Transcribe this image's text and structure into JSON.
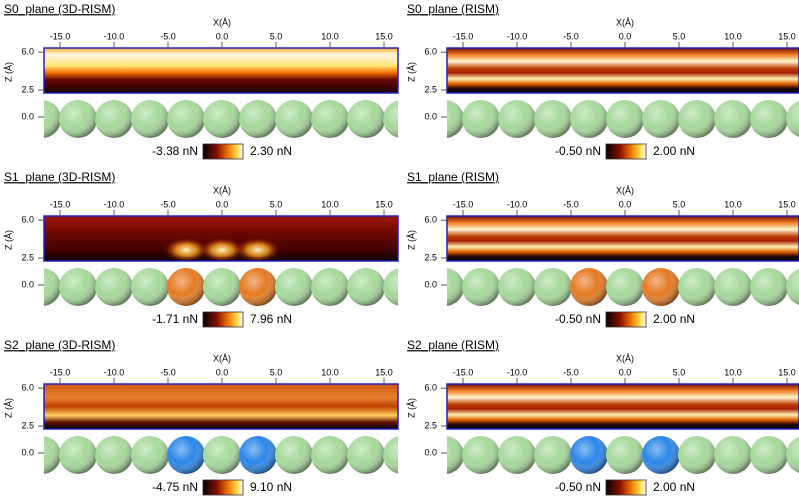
{
  "panels": [
    {
      "title": "S0_plane (3D-RISM)",
      "x_label": "X(Å)",
      "z_label": "Z (Å)",
      "xticks": [
        {
          "value": -15,
          "label": "-15.0"
        },
        {
          "value": -10,
          "label": "-10.0"
        },
        {
          "value": -5,
          "label": "-5.0"
        },
        {
          "value": 0,
          "label": "0.0"
        },
        {
          "value": 5,
          "label": "5.0"
        },
        {
          "value": 10,
          "label": "10.0"
        },
        {
          "value": 15,
          "label": "15.0"
        }
      ],
      "zticks": [
        {
          "value": 6,
          "label": "6.0"
        },
        {
          "value": 2.5,
          "label": "2.5"
        },
        {
          "value": 0,
          "label": "0.0"
        }
      ],
      "colorbar": {
        "min_label": "-3.38 nN",
        "max_label": "2.30 nN"
      },
      "atom_colors": [
        "#a6d99b",
        "#a6d99b",
        "#a6d99b",
        "#a6d99b",
        "#a6d99b",
        "#a6d99b",
        "#a6d99b",
        "#a6d99b",
        "#a6d99b",
        "#a6d99b",
        "#a6d99b"
      ]
    },
    {
      "title": "S0_plane (RISM)",
      "x_label": "X(Å)",
      "z_label": "Z (Å)",
      "xticks": [
        {
          "value": -15,
          "label": "-15.0"
        },
        {
          "value": -10,
          "label": "-10.0"
        },
        {
          "value": -5,
          "label": "-5.0"
        },
        {
          "value": 0,
          "label": "0.0"
        },
        {
          "value": 5,
          "label": "5.0"
        },
        {
          "value": 10,
          "label": "10.0"
        },
        {
          "value": 15,
          "label": "15.0"
        }
      ],
      "zticks": [
        {
          "value": 6,
          "label": "6.0"
        },
        {
          "value": 2.5,
          "label": "2.5"
        },
        {
          "value": 0,
          "label": "0.0"
        }
      ],
      "colorbar": {
        "min_label": "-0.50 nN",
        "max_label": "2.00 nN"
      },
      "atom_colors": [
        "#a6d99b",
        "#a6d99b",
        "#a6d99b",
        "#a6d99b",
        "#a6d99b",
        "#a6d99b",
        "#a6d99b",
        "#a6d99b",
        "#a6d99b",
        "#a6d99b",
        "#a6d99b"
      ]
    },
    {
      "title": "S1_plane (3D-RISM)",
      "x_label": "X(Å)",
      "z_label": "Z (Å)",
      "xticks": [
        {
          "value": -15,
          "label": "-15.0"
        },
        {
          "value": -10,
          "label": "-10.0"
        },
        {
          "value": -5,
          "label": "-5.0"
        },
        {
          "value": 0,
          "label": "0.0"
        },
        {
          "value": 5,
          "label": "5.0"
        },
        {
          "value": 10,
          "label": "10.0"
        },
        {
          "value": 15,
          "label": "15.0"
        }
      ],
      "zticks": [
        {
          "value": 6,
          "label": "6.0"
        },
        {
          "value": 2.5,
          "label": "2.5"
        },
        {
          "value": 0,
          "label": "0.0"
        }
      ],
      "colorbar": {
        "min_label": "-1.71 nN",
        "max_label": "7.96 nN"
      },
      "atom_colors": [
        "#a6d99b",
        "#a6d99b",
        "#a6d99b",
        "#a6d99b",
        "#e57a22",
        "#a6d99b",
        "#e57a22",
        "#a6d99b",
        "#a6d99b",
        "#a6d99b",
        "#a6d99b"
      ]
    },
    {
      "title": "S1_plane (RISM)",
      "x_label": "X(Å)",
      "z_label": "Z (Å)",
      "xticks": [
        {
          "value": -15,
          "label": "-15.0"
        },
        {
          "value": -10,
          "label": "-10.0"
        },
        {
          "value": -5,
          "label": "-5.0"
        },
        {
          "value": 0,
          "label": "0.0"
        },
        {
          "value": 5,
          "label": "5.0"
        },
        {
          "value": 10,
          "label": "10.0"
        },
        {
          "value": 15,
          "label": "15.0"
        }
      ],
      "zticks": [
        {
          "value": 6,
          "label": "6.0"
        },
        {
          "value": 2.5,
          "label": "2.5"
        },
        {
          "value": 0,
          "label": "0.0"
        }
      ],
      "colorbar": {
        "min_label": "-0.50 nN",
        "max_label": "2.00 nN"
      },
      "atom_colors": [
        "#a6d99b",
        "#a6d99b",
        "#a6d99b",
        "#a6d99b",
        "#e57a22",
        "#a6d99b",
        "#e57a22",
        "#a6d99b",
        "#a6d99b",
        "#a6d99b",
        "#a6d99b"
      ]
    },
    {
      "title": "S2_plane (3D-RISM)",
      "x_label": "X(Å)",
      "z_label": "Z (Å)",
      "xticks": [
        {
          "value": -15,
          "label": "-15.0"
        },
        {
          "value": -10,
          "label": "-10.0"
        },
        {
          "value": -5,
          "label": "-5.0"
        },
        {
          "value": 0,
          "label": "0.0"
        },
        {
          "value": 5,
          "label": "5.0"
        },
        {
          "value": 10,
          "label": "10.0"
        },
        {
          "value": 15,
          "label": "15.0"
        }
      ],
      "zticks": [
        {
          "value": 6,
          "label": "6.0"
        },
        {
          "value": 2.5,
          "label": "2.5"
        },
        {
          "value": 0,
          "label": "0.0"
        }
      ],
      "colorbar": {
        "min_label": "-4.75 nN",
        "max_label": "9.10 nN"
      },
      "atom_colors": [
        "#a6d99b",
        "#a6d99b",
        "#a6d99b",
        "#a6d99b",
        "#2a86e8",
        "#a6d99b",
        "#2a86e8",
        "#a6d99b",
        "#a6d99b",
        "#a6d99b",
        "#a6d99b"
      ]
    },
    {
      "title": "S2_plane (RISM)",
      "x_label": "X(Å)",
      "z_label": "Z (Å)",
      "xticks": [
        {
          "value": -15,
          "label": "-15.0"
        },
        {
          "value": -10,
          "label": "-10.0"
        },
        {
          "value": -5,
          "label": "-5.0"
        },
        {
          "value": 0,
          "label": "0.0"
        },
        {
          "value": 5,
          "label": "5.0"
        },
        {
          "value": 10,
          "label": "10.0"
        },
        {
          "value": 15,
          "label": "15.0"
        }
      ],
      "zticks": [
        {
          "value": 6,
          "label": "6.0"
        },
        {
          "value": 2.5,
          "label": "2.5"
        },
        {
          "value": 0,
          "label": "0.0"
        }
      ],
      "colorbar": {
        "min_label": "-0.50 nN",
        "max_label": "2.00 nN"
      },
      "atom_colors": [
        "#a6d99b",
        "#a6d99b",
        "#a6d99b",
        "#a6d99b",
        "#2a86e8",
        "#a6d99b",
        "#2a86e8",
        "#a6d99b",
        "#a6d99b",
        "#a6d99b",
        "#a6d99b"
      ]
    }
  ]
}
